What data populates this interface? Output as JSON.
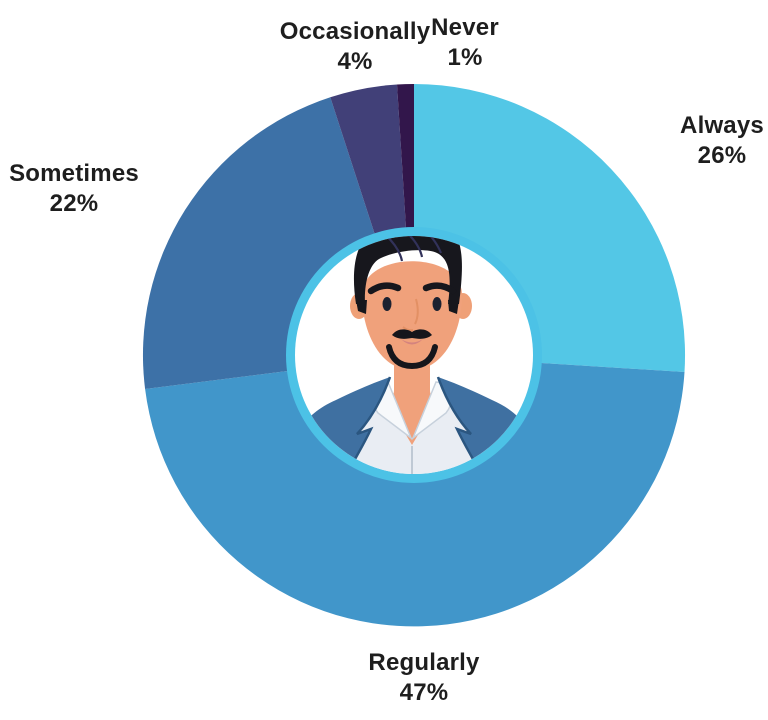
{
  "chart_data": {
    "type": "pie",
    "subtype": "donut",
    "title": "",
    "unit": "%",
    "order": "clockwise-from-top",
    "categories": [
      "Always",
      "Regularly",
      "Sometimes",
      "Occasionally",
      "Never"
    ],
    "values": [
      26,
      47,
      22,
      4,
      1
    ],
    "segments": [
      {
        "label": "Always",
        "value": 26,
        "display": "26%",
        "color": "#53C7E6"
      },
      {
        "label": "Regularly",
        "value": 47,
        "display": "47%",
        "color": "#4196CA"
      },
      {
        "label": "Sometimes",
        "value": 22,
        "display": "22%",
        "color": "#3D71A7"
      },
      {
        "label": "Occasionally",
        "value": 4,
        "display": "4%",
        "color": "#414078"
      },
      {
        "label": "Never",
        "value": 1,
        "display": "1%",
        "color": "#32164B"
      }
    ],
    "hole_ring_color": "#4CC2E6",
    "hole_fill": "#FFFFFF",
    "label_color": "#1E1E1E",
    "legend_position": "labels-around-chart",
    "center_image": "man-avatar-illustration"
  }
}
